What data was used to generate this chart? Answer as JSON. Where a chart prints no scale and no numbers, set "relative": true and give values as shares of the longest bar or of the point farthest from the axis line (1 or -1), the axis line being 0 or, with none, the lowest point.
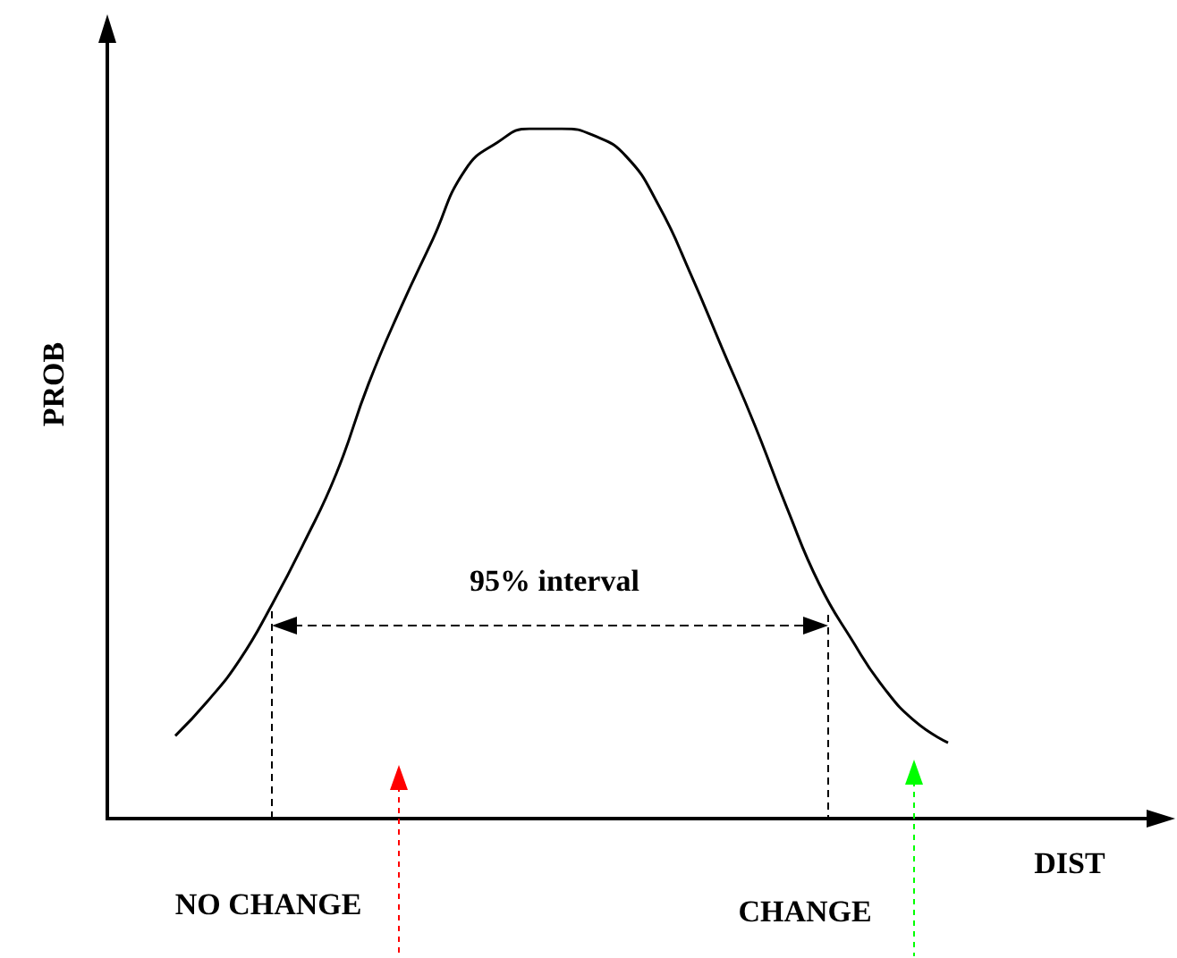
{
  "chart_data": {
    "type": "line",
    "relative": true,
    "xlabel": "DIST",
    "ylabel": "PROB",
    "marker": "none",
    "categories": [
      null,
      null,
      null,
      null,
      null,
      null,
      null,
      null,
      null,
      null,
      null,
      null,
      null,
      null,
      null,
      null,
      null,
      null,
      null,
      null,
      null,
      null,
      null,
      null,
      null
    ],
    "series": [
      {
        "color": "#000000",
        "values": [
          0.12,
          0.17,
          0.23,
          0.31,
          0.4,
          0.5,
          0.63,
          0.74,
          0.84,
          0.94,
          0.98,
          1,
          1,
          0.99,
          0.96,
          0.89,
          0.79,
          0.68,
          0.57,
          0.45,
          0.34,
          0.26,
          0.19,
          0.14,
          0.11
        ]
      }
    ],
    "annotations": [
      "95% interval",
      "NO CHANGE",
      "CHANGE"
    ]
  }
}
